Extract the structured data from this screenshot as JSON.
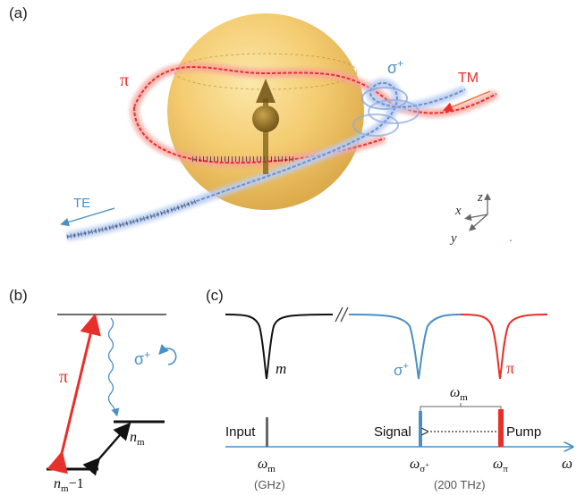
{
  "panels": {
    "a": "(a)",
    "b": "(b)",
    "c": "(c)"
  },
  "panel_a": {
    "pi": "π",
    "sigma": "σ",
    "sigma_sup": "+",
    "tm": "TM",
    "te": "TE",
    "axis_z": "z",
    "axis_x": "x",
    "axis_y": "y",
    "dot": "."
  },
  "panel_b": {
    "pi": "π",
    "sigma": "σ",
    "sigma_sup": "+",
    "n_m": "n",
    "n_m_sub": "m",
    "n_m1": "n",
    "n_m1_sub": "m",
    "n_m1_tail": "−1"
  },
  "panel_c": {
    "m_label": "m",
    "sigma": "σ",
    "sigma_sup": "+",
    "pi": "π",
    "omega_m_top": "ω",
    "omega_m_top_sub": "m",
    "input": "Input",
    "signal": "Signal",
    "pump": "Pump",
    "omega_m": "ω",
    "omega_m_sub": "m",
    "omega_sigma": "ω",
    "omega_sigma_sub": "σ",
    "omega_sigma_subsup": "+",
    "omega_pi": "ω",
    "omega_pi_sub": "π",
    "omega": "ω",
    "ghz": "(GHz)",
    "thz": "(200 THz)"
  },
  "colors": {
    "red": "#e8302a",
    "blue": "#4a8fc6",
    "sphere": "#f3c35f",
    "arrow": "#8a6a1e",
    "axis": "#555555"
  }
}
